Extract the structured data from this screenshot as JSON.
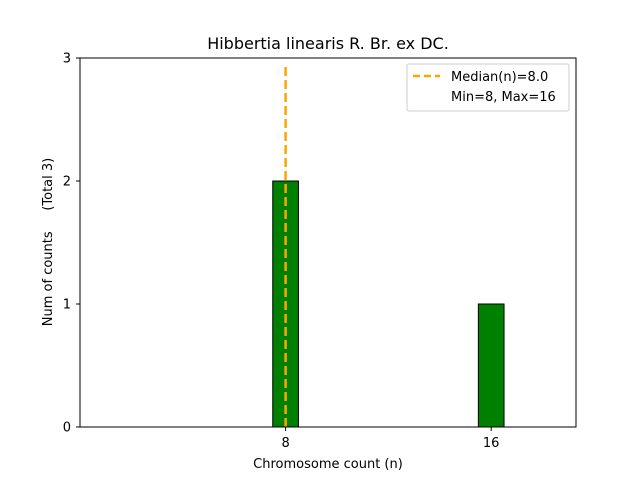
{
  "chart_data": {
    "type": "bar",
    "title": "Hibbertia linearis R. Br. ex DC.",
    "xlabel": "Chromosome count (n)",
    "ylabel": "Num of counts     (Total 3)",
    "categories": [
      "8",
      "16"
    ],
    "x": [
      8,
      16
    ],
    "values": [
      2,
      1
    ],
    "bar_color": "#008000",
    "bar_edge_color": "#000000",
    "xlim": [
      0,
      19.3
    ],
    "ylim": [
      0,
      3
    ],
    "yticks": [
      0,
      1,
      2,
      3
    ],
    "xticks": [
      8,
      16
    ],
    "grid": false,
    "median": {
      "value": 8.0,
      "color": "#FFA500",
      "style": "dashed"
    },
    "legend": {
      "position": "top-right",
      "entries": [
        "Median(n)=8.0",
        "Min=8, Max=16"
      ]
    }
  }
}
